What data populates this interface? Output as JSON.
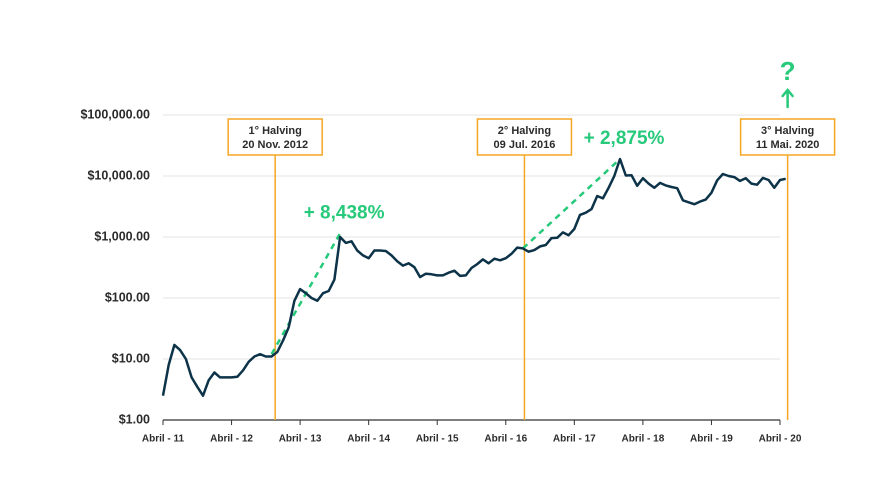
{
  "chart_data": {
    "type": "line",
    "log_y": true,
    "grid": true,
    "ylim": [
      1,
      100000
    ],
    "yticks": [
      {
        "value": 1,
        "label": "$1.00"
      },
      {
        "value": 10,
        "label": "$10.00"
      },
      {
        "value": 100,
        "label": "$100.00"
      },
      {
        "value": 1000,
        "label": "$1,000.00"
      },
      {
        "value": 10000,
        "label": "$10,000.00"
      },
      {
        "value": 100000,
        "label": "$100,000.00"
      }
    ],
    "xlim": [
      "2011-04",
      "2020-04"
    ],
    "xticks": [
      {
        "value": "2011-04",
        "label": "Abril - 11"
      },
      {
        "value": "2012-04",
        "label": "Abril - 12"
      },
      {
        "value": "2013-04",
        "label": "Abril - 13"
      },
      {
        "value": "2014-04",
        "label": "Abril - 14"
      },
      {
        "value": "2015-04",
        "label": "Abril - 15"
      },
      {
        "value": "2016-04",
        "label": "Abril - 16"
      },
      {
        "value": "2017-04",
        "label": "Abril - 17"
      },
      {
        "value": "2018-04",
        "label": "Abril - 18"
      },
      {
        "value": "2019-04",
        "label": "Abril - 19"
      },
      {
        "value": "2020-04",
        "label": "Abril - 20"
      }
    ],
    "x": [
      "2011-04",
      "2011-05",
      "2011-06",
      "2011-07",
      "2011-08",
      "2011-09",
      "2011-10",
      "2011-11",
      "2011-12",
      "2012-01",
      "2012-02",
      "2012-03",
      "2012-04",
      "2012-05",
      "2012-06",
      "2012-07",
      "2012-08",
      "2012-09",
      "2012-10",
      "2012-11",
      "2012-12",
      "2013-01",
      "2013-02",
      "2013-03",
      "2013-04",
      "2013-05",
      "2013-06",
      "2013-07",
      "2013-08",
      "2013-09",
      "2013-10",
      "2013-11",
      "2013-12",
      "2014-01",
      "2014-02",
      "2014-03",
      "2014-04",
      "2014-05",
      "2014-06",
      "2014-07",
      "2014-08",
      "2014-09",
      "2014-10",
      "2014-11",
      "2014-12",
      "2015-01",
      "2015-02",
      "2015-03",
      "2015-04",
      "2015-05",
      "2015-06",
      "2015-07",
      "2015-08",
      "2015-09",
      "2015-10",
      "2015-11",
      "2015-12",
      "2016-01",
      "2016-02",
      "2016-03",
      "2016-04",
      "2016-05",
      "2016-06",
      "2016-07",
      "2016-08",
      "2016-09",
      "2016-10",
      "2016-11",
      "2016-12",
      "2017-01",
      "2017-02",
      "2017-03",
      "2017-04",
      "2017-05",
      "2017-06",
      "2017-07",
      "2017-08",
      "2017-09",
      "2017-10",
      "2017-11",
      "2017-12",
      "2018-01",
      "2018-02",
      "2018-03",
      "2018-04",
      "2018-05",
      "2018-06",
      "2018-07",
      "2018-08",
      "2018-09",
      "2018-10",
      "2018-11",
      "2018-12",
      "2019-01",
      "2019-02",
      "2019-03",
      "2019-04",
      "2019-05",
      "2019-06",
      "2019-07",
      "2019-08",
      "2019-09",
      "2019-10",
      "2019-11",
      "2019-12",
      "2020-01",
      "2020-02",
      "2020-03",
      "2020-04",
      "2020-05"
    ],
    "series": [
      {
        "color": "#0d3349",
        "values": [
          2.5,
          8,
          17,
          14,
          10,
          5,
          3.5,
          2.5,
          4.5,
          6,
          5,
          5,
          5,
          5.1,
          6.5,
          9,
          11,
          12,
          11,
          11,
          13,
          20,
          33,
          90,
          140,
          120,
          100,
          90,
          120,
          130,
          200,
          1000,
          800,
          850,
          600,
          500,
          450,
          600,
          600,
          590,
          500,
          400,
          340,
          370,
          320,
          220,
          250,
          245,
          235,
          235,
          260,
          280,
          230,
          235,
          310,
          360,
          430,
          370,
          440,
          415,
          450,
          530,
          670,
          650,
          575,
          610,
          700,
          740,
          960,
          970,
          1190,
          1070,
          1350,
          2300,
          2500,
          2870,
          4700,
          4300,
          6400,
          10000,
          19000,
          10200,
          10300,
          6900,
          9200,
          7500,
          6400,
          7700,
          7000,
          6600,
          6300,
          4000,
          3700,
          3450,
          3800,
          4100,
          5300,
          8500,
          10800,
          10000,
          9600,
          8300,
          9200,
          7500,
          7200,
          9300,
          8600,
          6400,
          8600,
          9000
        ]
      }
    ],
    "halvings": [
      {
        "title": "1° Halving",
        "date": "20 Nov. 2012",
        "x": "2012-11-20"
      },
      {
        "title": "2° Halving",
        "date": "09 Jul. 2016",
        "x": "2016-07-09"
      },
      {
        "title": "3° Halving",
        "date": "11 Mai. 2020",
        "x": "2020-05-11",
        "forecast": "?"
      }
    ],
    "gains": [
      {
        "label": "+ 8,438%",
        "x": [
          "2012-11",
          "2013-11"
        ],
        "y": [
          12,
          1150
        ]
      },
      {
        "label": "+ 2,875%",
        "x": [
          "2016-07",
          "2017-12"
        ],
        "y": [
          650,
          19000
        ]
      }
    ],
    "halving_color": "#f5a623",
    "gain_color": "#27c97a"
  }
}
